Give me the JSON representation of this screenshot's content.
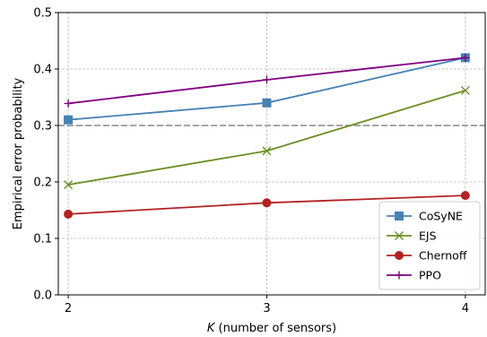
{
  "chart_data": {
    "type": "line",
    "title": "",
    "xlabel_italic": "K",
    "xlabel_rest": " (number of sensors)",
    "ylabel": "Empirical error probability",
    "x": [
      2,
      3,
      4
    ],
    "x_ticks": [
      "2",
      "3",
      "4"
    ],
    "xlim": [
      1.95,
      4.1
    ],
    "ylim": [
      0,
      0.5
    ],
    "y_ticks": [
      "0.0",
      "0.1",
      "0.2",
      "0.3",
      "0.4",
      "0.5"
    ],
    "grid": true,
    "reference_line": {
      "y": 0.3,
      "style": "dashed",
      "color": "#888888"
    },
    "legend_position": "lower-right",
    "series": [
      {
        "name": "CoSyNE",
        "values": [
          0.31,
          0.34,
          0.42
        ],
        "color": "#4682b4",
        "marker": "square"
      },
      {
        "name": "EJS",
        "values": [
          0.195,
          0.255,
          0.362
        ],
        "color": "#6b8e23",
        "marker": "x"
      },
      {
        "name": "Chernoff",
        "values": [
          0.143,
          0.163,
          0.176
        ],
        "color": "#b22222",
        "marker": "circle"
      },
      {
        "name": "PPO",
        "values": [
          0.339,
          0.381,
          0.42
        ],
        "color": "#800080",
        "marker": "plus"
      }
    ]
  }
}
